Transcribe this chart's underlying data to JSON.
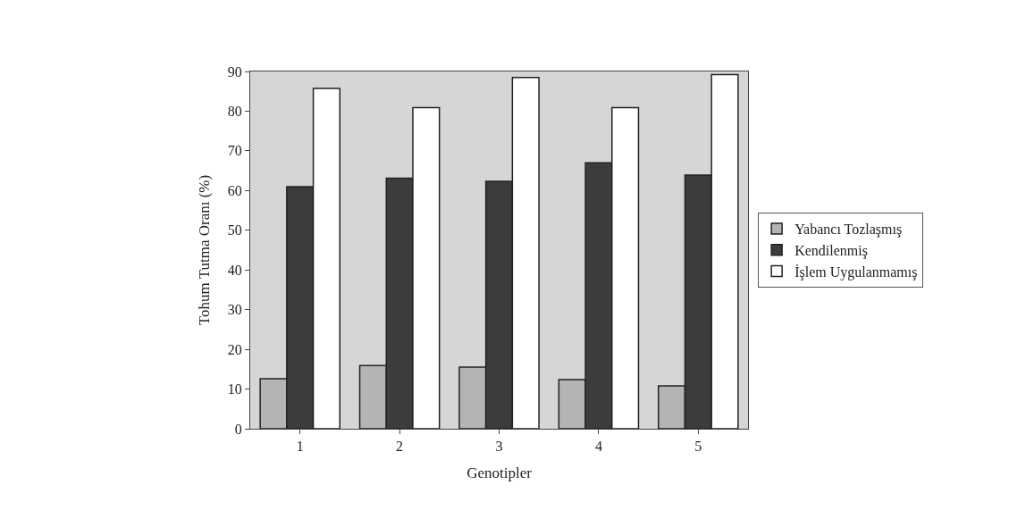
{
  "chart_data": {
    "type": "bar",
    "xlabel": "Genotipler",
    "ylabel": "Tohum Tutma Oranı (%)",
    "categories": [
      "1",
      "2",
      "3",
      "4",
      "5"
    ],
    "series": [
      {
        "name": "Yabancı Tozlaşmış",
        "color": "#b4b4b4",
        "values": [
          12.6,
          15.9,
          15.5,
          12.4,
          10.8
        ]
      },
      {
        "name": "Kendilenmiş",
        "color": "#3c3c3c",
        "values": [
          61.0,
          63.1,
          62.3,
          67.0,
          63.9
        ]
      },
      {
        "name": "İşlem Uygulanmamış",
        "color": "#ffffff",
        "values": [
          85.7,
          80.9,
          88.5,
          80.9,
          89.2
        ]
      }
    ],
    "ylim": [
      0,
      90
    ],
    "yticks": [
      0,
      10,
      20,
      30,
      40,
      50,
      60,
      70,
      80,
      90
    ],
    "grid": false,
    "legend": "right"
  }
}
